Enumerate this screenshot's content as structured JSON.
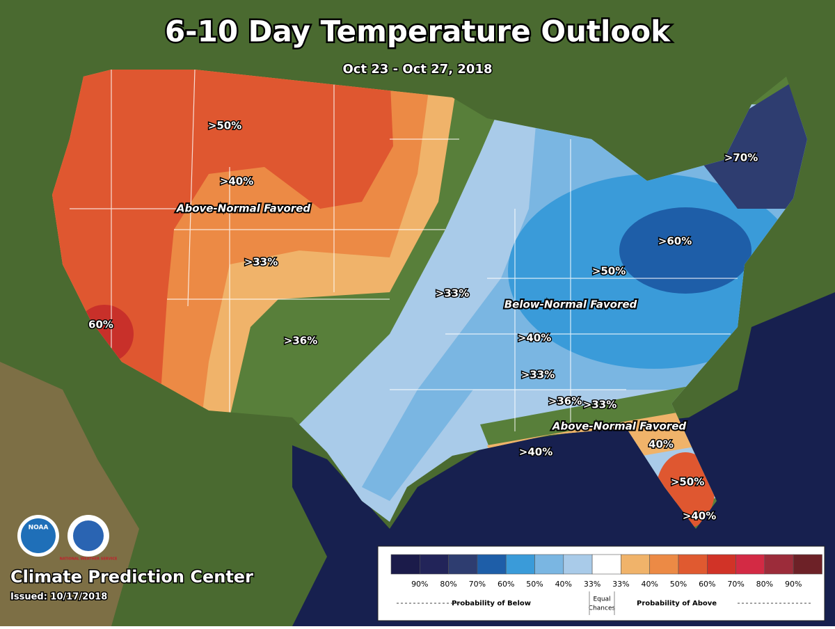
{
  "header": {
    "title": "6-10 Day Temperature Outlook",
    "subtitle": "Oct 23 - Oct 27, 2018"
  },
  "map_labels": [
    ">50%",
    ">40%",
    ">33%",
    ">36%",
    "60%",
    ">33%",
    ">70%",
    ">60%",
    ">50%",
    ">40%",
    ">33%",
    ">36%",
    ">33%",
    ">40%",
    "40%",
    ">50%",
    ">40%"
  ],
  "region_labels": [
    "Above-Normal Favored",
    "Below-Normal Favored",
    "Above-Normal Favored"
  ],
  "logos": [
    "NOAA",
    "NATIONAL WEATHER SERVICE"
  ],
  "legend": {
    "colors": [
      "#1b1b4a",
      "#222459",
      "#2e3d70",
      "#1e5ea8",
      "#3a9bd9",
      "#7ab6e2",
      "#a9cbe9",
      "#ffffff",
      "#f0b36a",
      "#ec8a45",
      "#e05a30",
      "#d13327",
      "#d32a44",
      "#9c2c3a",
      "#6d2127"
    ],
    "labels": [
      "90%",
      "80%",
      "70%",
      "60%",
      "50%",
      "40%",
      "33%",
      "33%",
      "40%",
      "50%",
      "60%",
      "70%",
      "80%",
      "90%"
    ],
    "below": "Probability of Below",
    "equal": [
      "Equal",
      "Chances"
    ],
    "above": "Probability of Above"
  },
  "footer": {
    "org": "Climate Prediction Center",
    "issued": "Issued: 10/17/2018"
  }
}
